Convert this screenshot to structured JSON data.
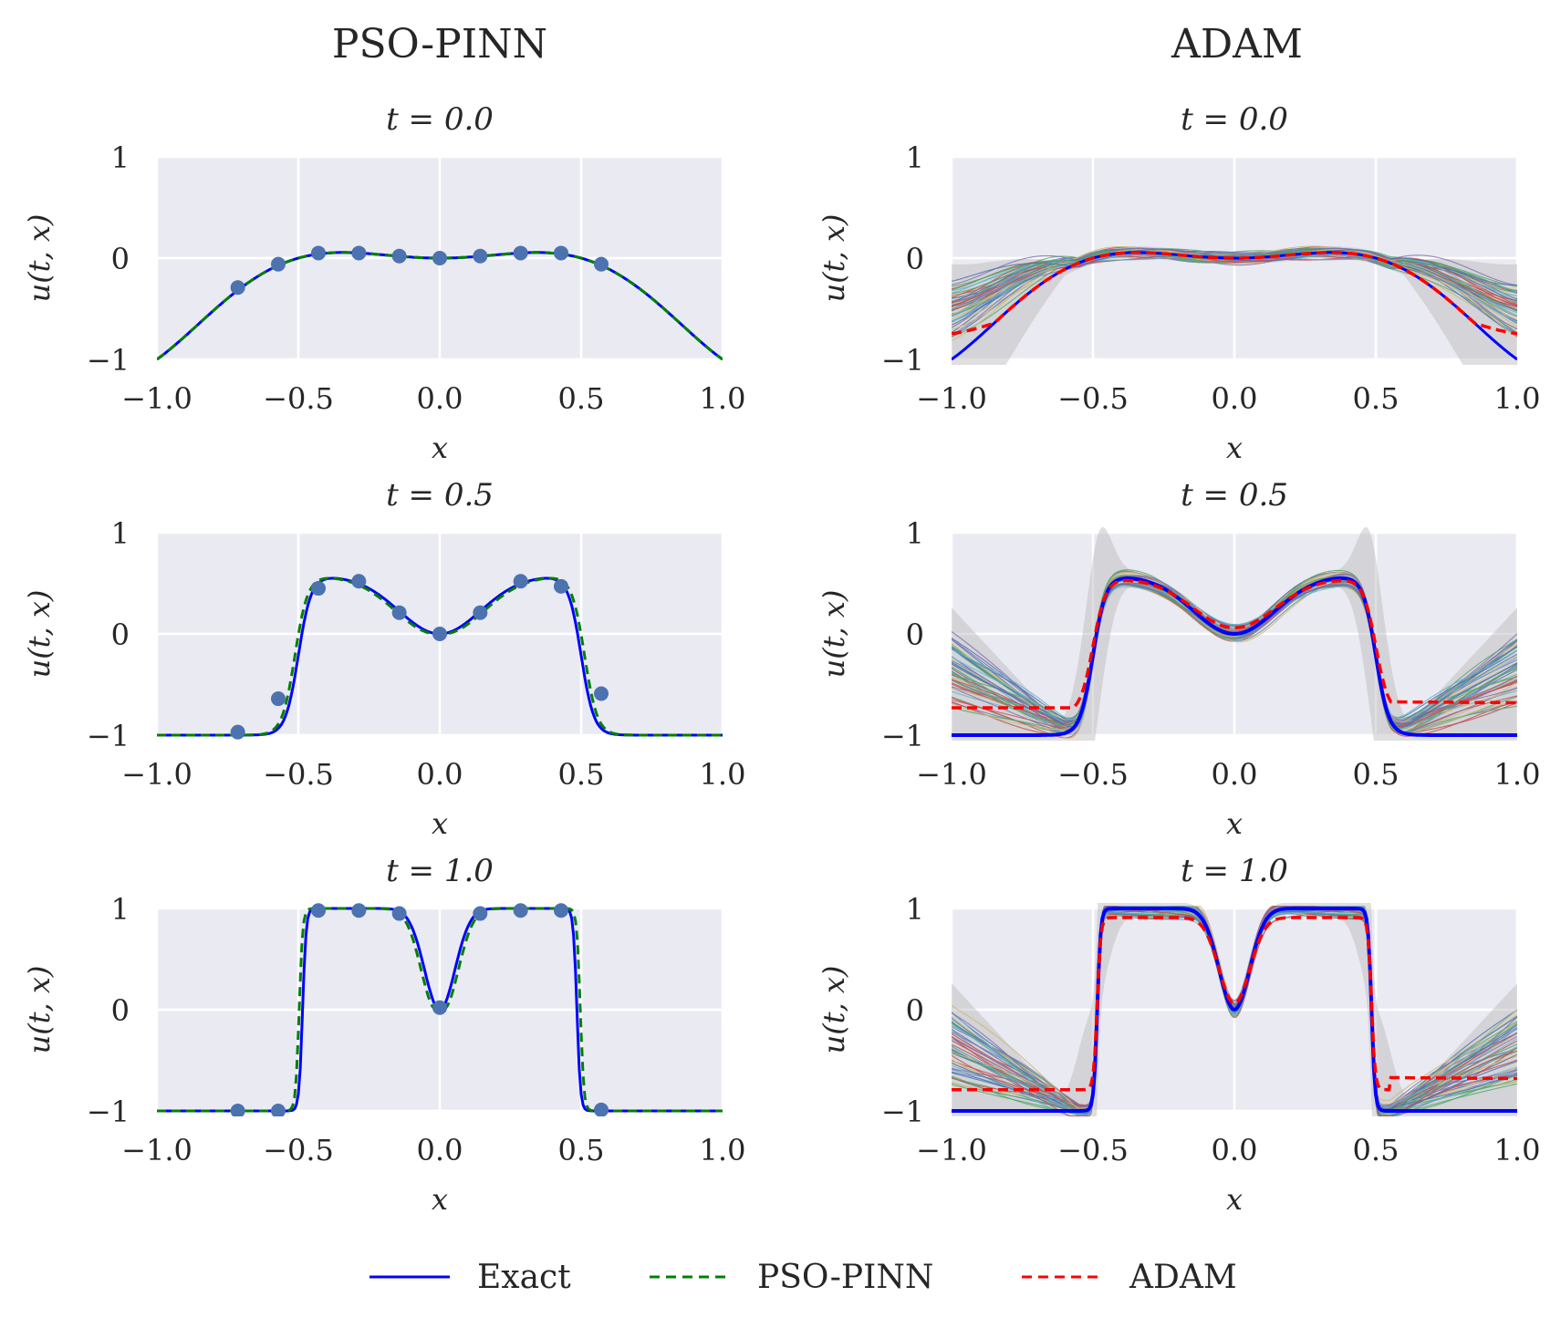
{
  "columns": [
    "PSO-PINN",
    "ADAM"
  ],
  "legend": [
    {
      "label": "Exact",
      "color": "#0000ff",
      "dash": "solid"
    },
    {
      "label": "PSO-PINN",
      "color": "#008000",
      "dash": "dashed"
    },
    {
      "label": "ADAM",
      "color": "#ff0000",
      "dash": "dashed"
    }
  ],
  "colors": {
    "panel_bg": "#eaeaf2",
    "grid": "#ffffff",
    "exact": "#0000ff",
    "pso": "#008000",
    "adam": "#ff0000",
    "points": "#4c72b0",
    "band": "#b8b8b8",
    "ensemble": [
      "#4c72b0",
      "#55a868",
      "#c44e52",
      "#8172b2",
      "#ccb974",
      "#64b5cd"
    ]
  },
  "chart_data": {
    "type": "line",
    "xlim": [
      -1.0,
      1.0
    ],
    "ylim": [
      -1,
      1
    ],
    "xticks": [
      -1.0,
      -0.5,
      0.0,
      0.5,
      1.0
    ],
    "xtick_labels": [
      "−1.0",
      "−0.5",
      "0.0",
      "0.5",
      "1.0"
    ],
    "yticks": [
      -1,
      0,
      1
    ],
    "ytick_labels": [
      "−1",
      "0",
      "1"
    ],
    "xlabel": "x",
    "ylabel": "u(t, x)",
    "ensemble_members": 50,
    "panels": [
      {
        "row": 0,
        "col": 0,
        "title": "t = 0.0",
        "t": 0.0,
        "series": [
          "Exact",
          "PSO-PINN"
        ],
        "training_points": [
          [
            -0.714,
            -0.29
          ],
          [
            -0.571,
            -0.06
          ],
          [
            -0.429,
            0.05
          ],
          [
            -0.286,
            0.05
          ],
          [
            -0.143,
            0.02
          ],
          [
            0.0,
            0.0
          ],
          [
            0.143,
            0.02
          ],
          [
            0.286,
            0.05
          ],
          [
            0.429,
            0.05
          ],
          [
            0.571,
            -0.06
          ]
        ]
      },
      {
        "row": 0,
        "col": 1,
        "title": "t = 0.0",
        "t": 0.0,
        "series": [
          "Exact",
          "ADAM",
          "ensemble",
          "band"
        ]
      },
      {
        "row": 1,
        "col": 0,
        "title": "t = 0.5",
        "t": 0.5,
        "series": [
          "Exact",
          "PSO-PINN"
        ],
        "training_points": [
          [
            -0.714,
            -0.97
          ],
          [
            -0.571,
            -0.64
          ],
          [
            -0.429,
            0.45
          ],
          [
            -0.286,
            0.52
          ],
          [
            -0.143,
            0.21
          ],
          [
            0.0,
            0.0
          ],
          [
            0.143,
            0.21
          ],
          [
            0.286,
            0.52
          ],
          [
            0.429,
            0.47
          ],
          [
            0.571,
            -0.59
          ]
        ]
      },
      {
        "row": 1,
        "col": 1,
        "title": "t = 0.5",
        "t": 0.5,
        "series": [
          "Exact",
          "ADAM",
          "ensemble",
          "band"
        ]
      },
      {
        "row": 2,
        "col": 0,
        "title": "t = 1.0",
        "t": 1.0,
        "series": [
          "Exact",
          "PSO-PINN"
        ],
        "training_points": [
          [
            -0.714,
            -1.0
          ],
          [
            -0.571,
            -1.0
          ],
          [
            -0.429,
            0.98
          ],
          [
            -0.286,
            0.98
          ],
          [
            -0.143,
            0.95
          ],
          [
            0.0,
            0.02
          ],
          [
            0.143,
            0.95
          ],
          [
            0.286,
            0.98
          ],
          [
            0.429,
            0.98
          ],
          [
            0.571,
            -0.99
          ]
        ]
      },
      {
        "row": 2,
        "col": 1,
        "title": "t = 1.0",
        "t": 1.0,
        "series": [
          "Exact",
          "ADAM",
          "ensemble",
          "band"
        ]
      }
    ]
  }
}
